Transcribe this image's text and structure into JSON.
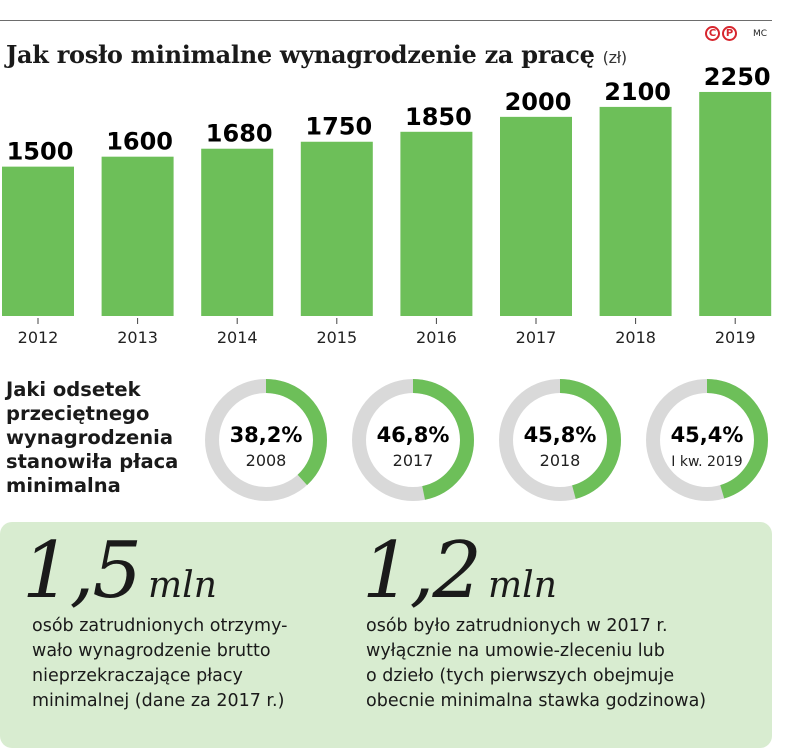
{
  "header": {
    "title": "Jak rosło minimalne wynagrodzenie za pracę",
    "unit": "(zł)",
    "logo_c": "C",
    "logo_p": "P",
    "author": "MC"
  },
  "colors": {
    "bar": "#6dbf59",
    "ring_bg": "#d9d9d9",
    "ring_fg": "#6dbf59",
    "panel": "#d8ecd0"
  },
  "chart_data": {
    "type": "bar",
    "categories": [
      "2012",
      "2013",
      "2014",
      "2015",
      "2016",
      "2017",
      "2018",
      "2019"
    ],
    "values": [
      1500,
      1600,
      1680,
      1750,
      1850,
      2000,
      2100,
      2250
    ],
    "data_labels": [
      "1500",
      "1600",
      "1680",
      "1750",
      "1850",
      "2000",
      "2100",
      "2250"
    ],
    "title": "Jak rosło minimalne wynagrodzenie za pracę",
    "ylabel": "(zł)",
    "ylim": [
      0,
      2350
    ],
    "grid": false,
    "legend": "none"
  },
  "share": {
    "title_lines": [
      "Jaki odsetek",
      "przeciętnego",
      "wynagrodzenia",
      "stanowiła płaca",
      "minimalna"
    ],
    "items": [
      {
        "value": 38.2,
        "label": "38,2%",
        "year": "2008"
      },
      {
        "value": 46.8,
        "label": "46,8%",
        "year": "2017"
      },
      {
        "value": 45.8,
        "label": "45,8%",
        "year": "2018"
      },
      {
        "value": 45.4,
        "label": "45,4%",
        "year": "I kw. 2019"
      }
    ]
  },
  "stats": [
    {
      "number": "1,5",
      "unit": "mln",
      "lines": [
        "osób zatrudnionych otrzymy-",
        "wało wynagrodzenie brutto",
        "nieprzekraczające płacy",
        "minimalnej (dane za 2017 r.)"
      ]
    },
    {
      "number": "1,2",
      "unit": "mln",
      "lines": [
        "osób było zatrudnionych w 2017 r.",
        "wyłącznie na umowie-zleceniu lub",
        "o dzieło (tych pierwszych obejmuje",
        "obecnie minimalna stawka godzinowa)"
      ]
    }
  ]
}
